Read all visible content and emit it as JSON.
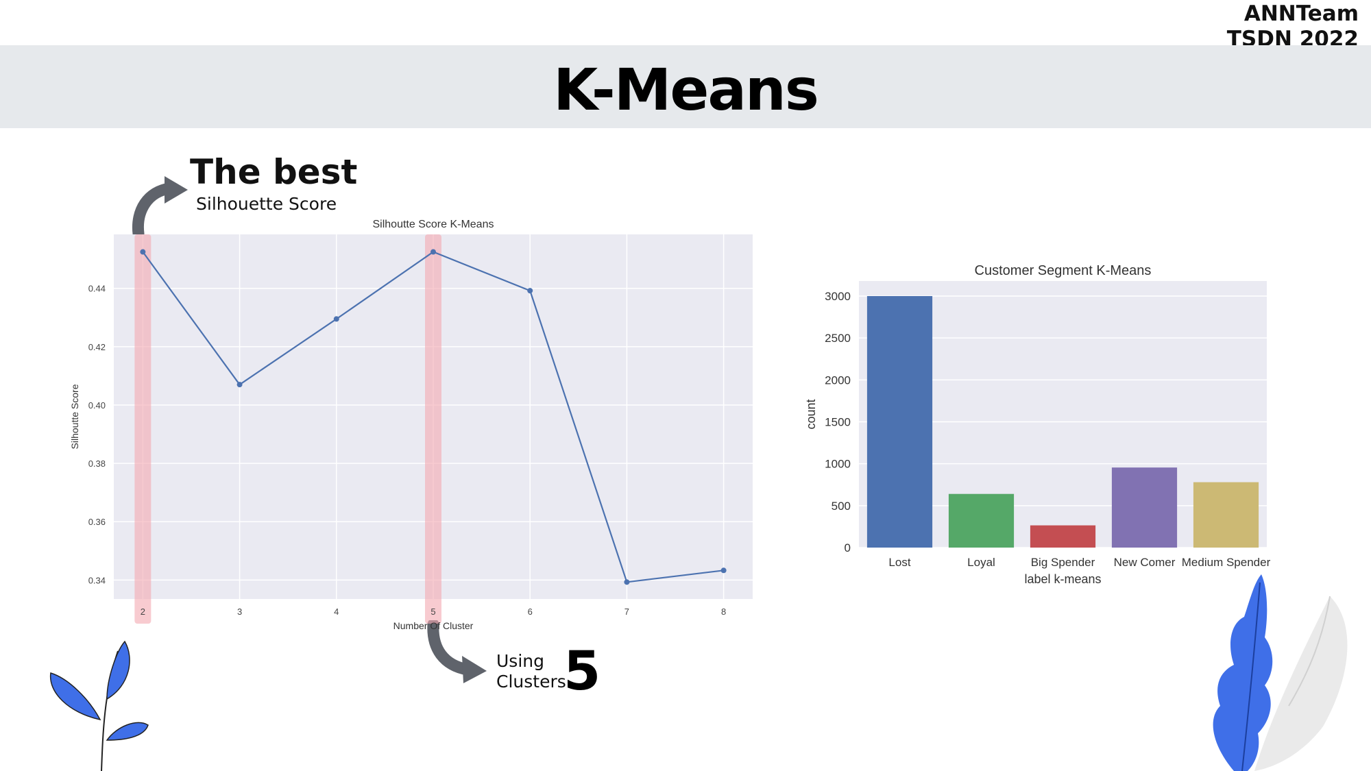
{
  "header": {
    "team_line1": "ANNTeam",
    "team_line2": "TSDN 2022",
    "title": "K-Means"
  },
  "annotations": {
    "best_title": "The best",
    "best_subtitle": "Silhouette Score",
    "using_line1": "Using",
    "using_line2": "Clusters",
    "using_number": "5"
  },
  "colors": {
    "plot_bg": "#eaeaf2",
    "line": "#4c72b0",
    "highlight": "#f4a9b0",
    "bars": [
      "#4c72b0",
      "#55a868",
      "#c44e52",
      "#8172b2",
      "#ccb974"
    ]
  },
  "chart_data": [
    {
      "type": "line",
      "title": "Silhoutte Score K-Means",
      "xlabel": "Number Of Cluster",
      "ylabel": "Silhoutte Score",
      "x": [
        2,
        3,
        4,
        5,
        6,
        7,
        8
      ],
      "y": [
        0.4525,
        0.407,
        0.4295,
        0.4525,
        0.4392,
        0.3393,
        0.3433
      ],
      "xlim": [
        1.7,
        8.3
      ],
      "ylim": [
        0.3335,
        0.4585
      ],
      "yticks": [
        "0.34",
        "0.36",
        "0.38",
        "0.40",
        "0.42",
        "0.44"
      ],
      "highlighted_x": [
        2,
        5
      ],
      "grid": true
    },
    {
      "type": "bar",
      "title": "Customer Segment K-Means",
      "xlabel": "label k-means",
      "ylabel": "count",
      "categories": [
        "Lost",
        "Loyal",
        "Big Spender",
        "New Comer",
        "Medium Spender"
      ],
      "values": [
        3000,
        640,
        265,
        955,
        780
      ],
      "ylim": [
        0,
        3180
      ],
      "yticks": [
        "0",
        "500",
        "1000",
        "1500",
        "2000",
        "2500",
        "3000"
      ],
      "grid": true
    }
  ]
}
